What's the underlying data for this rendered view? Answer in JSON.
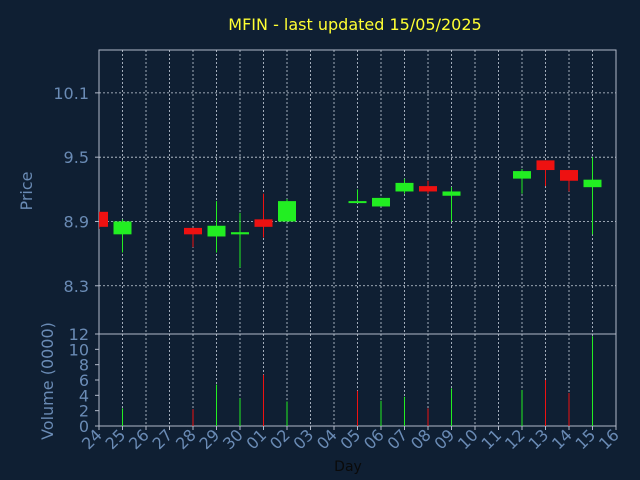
{
  "chart_data": {
    "type": "candlestick",
    "title": "MFIN - last updated 15/05/2025",
    "xlabel": "Day",
    "ylabel_price": "Price",
    "ylabel_volume": "Volume (0000)",
    "categories": [
      "24",
      "25",
      "26",
      "27",
      "28",
      "29",
      "30",
      "01",
      "02",
      "03",
      "04",
      "05",
      "06",
      "07",
      "08",
      "09",
      "10",
      "11",
      "12",
      "13",
      "14",
      "15",
      "16"
    ],
    "price_ylim": [
      7.85,
      10.5
    ],
    "price_ticks": [
      "8.3",
      "8.9",
      "9.5",
      "10.1"
    ],
    "volume_ylim": [
      0,
      12
    ],
    "volume_ticks": [
      "0",
      "2",
      "4",
      "6",
      "8",
      "10",
      "12"
    ],
    "grid": true,
    "colors": {
      "up": "#22ee22",
      "down": "#ee1111",
      "background": "#0f1f33",
      "title": "#ffff33",
      "axis_text": "#6a8bb5",
      "frame": "#b0b8c8",
      "grid": "#c8d0dc"
    },
    "candles": [
      {
        "day": "24",
        "open": 8.99,
        "high": 8.99,
        "low": 8.83,
        "close": 8.85
      },
      {
        "day": "25",
        "open": 8.78,
        "high": 8.92,
        "low": 8.61,
        "close": 8.9
      },
      {
        "day": "28",
        "open": 8.84,
        "high": 8.84,
        "low": 8.66,
        "close": 8.78
      },
      {
        "day": "29",
        "open": 8.76,
        "high": 9.09,
        "low": 8.61,
        "close": 8.86
      },
      {
        "day": "30",
        "open": 8.78,
        "high": 8.98,
        "low": 8.47,
        "close": 8.8
      },
      {
        "day": "01",
        "open": 8.92,
        "high": 9.16,
        "low": 8.75,
        "close": 8.85
      },
      {
        "day": "02",
        "open": 8.9,
        "high": 9.11,
        "low": 8.9,
        "close": 9.09
      },
      {
        "day": "05",
        "open": 9.09,
        "high": 9.2,
        "low": 9.09,
        "close": 9.09
      },
      {
        "day": "06",
        "open": 9.04,
        "high": 9.12,
        "low": 9.04,
        "close": 9.12
      },
      {
        "day": "07",
        "open": 9.18,
        "high": 9.3,
        "low": 9.16,
        "close": 9.26
      },
      {
        "day": "08",
        "open": 9.23,
        "high": 9.28,
        "low": 9.16,
        "close": 9.18
      },
      {
        "day": "09",
        "open": 9.14,
        "high": 9.22,
        "low": 8.9,
        "close": 9.18
      },
      {
        "day": "12",
        "open": 9.3,
        "high": 9.39,
        "low": 9.16,
        "close": 9.37
      },
      {
        "day": "13",
        "open": 9.47,
        "high": 9.47,
        "low": 9.23,
        "close": 9.38
      },
      {
        "day": "14",
        "open": 9.38,
        "high": 9.38,
        "low": 9.18,
        "close": 9.28
      },
      {
        "day": "15",
        "open": 9.22,
        "high": 9.5,
        "low": 8.78,
        "close": 9.29
      }
    ],
    "volume": [
      {
        "day": "25",
        "value": 2.3,
        "dir": "up"
      },
      {
        "day": "28",
        "value": 2.2,
        "dir": "down"
      },
      {
        "day": "29",
        "value": 5.4,
        "dir": "up"
      },
      {
        "day": "30",
        "value": 3.6,
        "dir": "up"
      },
      {
        "day": "01",
        "value": 6.7,
        "dir": "down"
      },
      {
        "day": "02",
        "value": 3.2,
        "dir": "up"
      },
      {
        "day": "05",
        "value": 4.6,
        "dir": "down"
      },
      {
        "day": "06",
        "value": 3.3,
        "dir": "up"
      },
      {
        "day": "07",
        "value": 3.8,
        "dir": "up"
      },
      {
        "day": "08",
        "value": 2.3,
        "dir": "down"
      },
      {
        "day": "09",
        "value": 4.9,
        "dir": "up"
      },
      {
        "day": "12",
        "value": 4.7,
        "dir": "up"
      },
      {
        "day": "13",
        "value": 6.0,
        "dir": "down"
      },
      {
        "day": "14",
        "value": 4.3,
        "dir": "down"
      },
      {
        "day": "15",
        "value": 11.7,
        "dir": "up"
      }
    ]
  }
}
